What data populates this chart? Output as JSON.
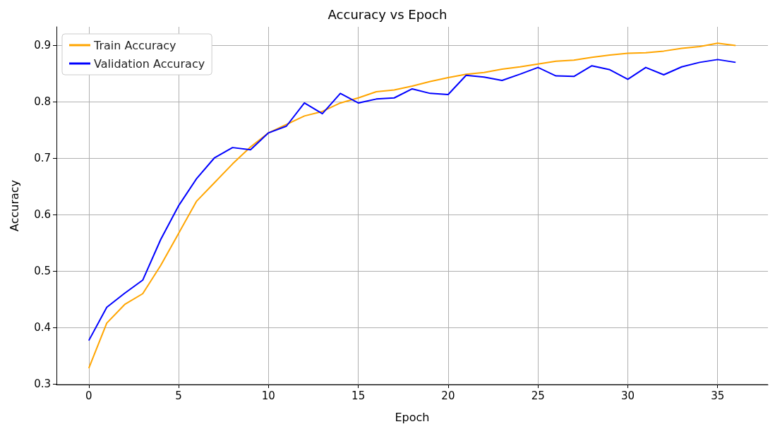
{
  "chart_data": {
    "type": "line",
    "title": "Accuracy vs Epoch",
    "xlabel": "Epoch",
    "ylabel": "Accuracy",
    "x": [
      0,
      1,
      2,
      3,
      4,
      5,
      6,
      7,
      8,
      9,
      10,
      11,
      12,
      13,
      14,
      15,
      16,
      17,
      18,
      19,
      20,
      21,
      22,
      23,
      24,
      25,
      26,
      27,
      28,
      29,
      30,
      31,
      32,
      33,
      34,
      35,
      36
    ],
    "xlim": [
      -1.8,
      37.8
    ],
    "xticks": [
      0,
      5,
      10,
      15,
      20,
      25,
      30,
      35
    ],
    "ylim": [
      0.299,
      0.933
    ],
    "yticks": [
      0.3,
      0.4,
      0.5,
      0.6,
      0.7,
      0.8,
      0.9
    ],
    "grid": true,
    "legend": "top left",
    "marker": "none",
    "line_style": "solid",
    "series": [
      {
        "name": "Train Accuracy",
        "color": "#ffa500",
        "values": [
          0.328,
          0.408,
          0.441,
          0.46,
          0.51,
          0.567,
          0.624,
          0.657,
          0.69,
          0.72,
          0.745,
          0.76,
          0.775,
          0.783,
          0.798,
          0.807,
          0.818,
          0.821,
          0.828,
          0.836,
          0.843,
          0.849,
          0.852,
          0.858,
          0.862,
          0.867,
          0.872,
          0.874,
          0.879,
          0.883,
          0.886,
          0.887,
          0.89,
          0.895,
          0.898,
          0.904,
          0.9
        ]
      },
      {
        "name": "Validation Accuracy",
        "color": "#0000ff",
        "values": [
          0.377,
          0.436,
          0.461,
          0.484,
          0.556,
          0.616,
          0.664,
          0.701,
          0.719,
          0.715,
          0.745,
          0.757,
          0.798,
          0.779,
          0.815,
          0.798,
          0.805,
          0.807,
          0.823,
          0.815,
          0.813,
          0.847,
          0.844,
          0.838,
          0.849,
          0.861,
          0.846,
          0.845,
          0.864,
          0.857,
          0.84,
          0.861,
          0.848,
          0.862,
          0.87,
          0.875,
          0.87
        ]
      }
    ]
  }
}
